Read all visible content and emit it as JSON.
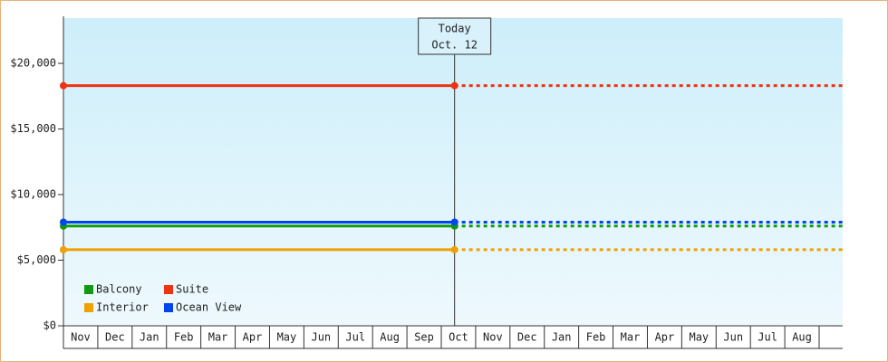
{
  "chart_data": {
    "type": "line",
    "categories": [
      "Nov",
      "Dec",
      "Jan",
      "Feb",
      "Mar",
      "Apr",
      "May",
      "Jun",
      "Jul",
      "Aug",
      "Sep",
      "Oct",
      "Nov",
      "Dec",
      "Jan",
      "Feb",
      "Mar",
      "Apr",
      "May",
      "Jun",
      "Jul",
      "Aug"
    ],
    "series": [
      {
        "name": "Balcony",
        "color": "#119911",
        "value": 7600
      },
      {
        "name": "Suite",
        "color": "#ee3311",
        "value": 18300
      },
      {
        "name": "Interior",
        "color": "#f0a000",
        "value": 5800
      },
      {
        "name": "Ocean View",
        "color": "#0044ee",
        "value": 7900
      }
    ],
    "today": {
      "lines": [
        "Today",
        "Oct. 12"
      ],
      "category": "Oct",
      "day": 12
    },
    "ylim": [
      0,
      23450
    ],
    "yticks": [
      {
        "value": 0,
        "label": "$0"
      },
      {
        "value": 5000,
        "label": "$5,000"
      },
      {
        "value": 10000,
        "label": "$10,000"
      },
      {
        "value": 15000,
        "label": "$15,000"
      },
      {
        "value": 20000,
        "label": "$20,000"
      }
    ]
  }
}
